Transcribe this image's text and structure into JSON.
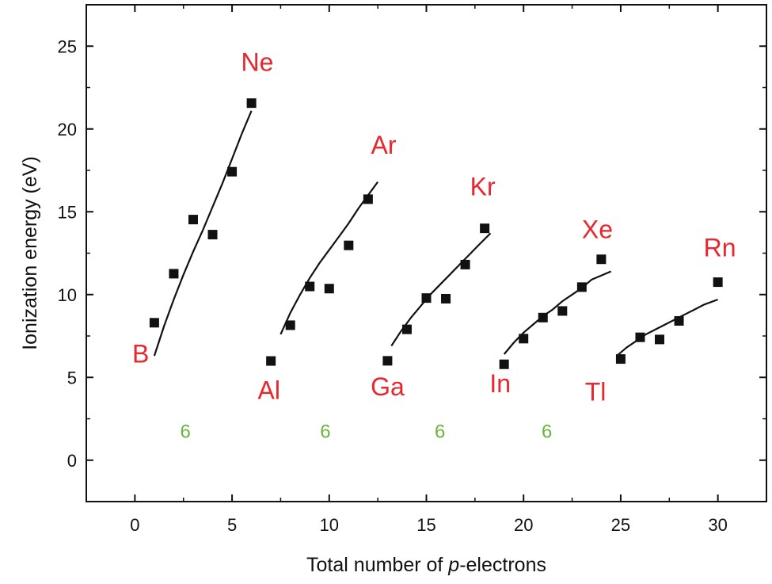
{
  "colors": {
    "element_label": "#e8262b",
    "count_label": "#6ab33d",
    "marker": "#111111",
    "fit_line": "#111111",
    "axis": "#111111"
  },
  "chart_data": {
    "type": "scatter",
    "xlabel_prefix": "Total number of ",
    "xlabel_italic": "p",
    "xlabel_suffix": "-electrons",
    "ylabel": "Ionization energy (eV)",
    "xlim": [
      -2.5,
      32.5
    ],
    "ylim": [
      -2.5,
      27.5
    ],
    "x_ticks": [
      0,
      5,
      10,
      15,
      20,
      25,
      30
    ],
    "y_ticks": [
      0,
      5,
      10,
      15,
      20,
      25
    ],
    "grid": false,
    "series": [
      {
        "points": [
          [
            1,
            8.3
          ],
          [
            2,
            11.26
          ],
          [
            3,
            14.53
          ],
          [
            4,
            13.62
          ],
          [
            5,
            17.42
          ],
          [
            6,
            21.56
          ]
        ],
        "fit": [
          [
            1,
            6.3
          ],
          [
            6,
            21.1
          ]
        ],
        "fit_shape": [
          [
            1.0,
            6.3
          ],
          [
            1.5,
            8.1
          ],
          [
            2.0,
            9.7
          ],
          [
            2.5,
            11.2
          ],
          [
            3.0,
            12.6
          ],
          [
            3.5,
            13.9
          ],
          [
            4.0,
            15.3
          ],
          [
            4.5,
            16.7
          ],
          [
            5.0,
            18.2
          ],
          [
            5.5,
            19.7
          ],
          [
            6.0,
            21.1
          ]
        ]
      },
      {
        "points": [
          [
            7,
            5.99
          ],
          [
            8,
            8.15
          ],
          [
            9,
            10.49
          ],
          [
            10,
            10.36
          ],
          [
            11,
            12.97
          ],
          [
            12,
            15.76
          ]
        ],
        "fit_shape": [
          [
            7.5,
            7.6
          ],
          [
            8.0,
            8.9
          ],
          [
            8.5,
            10.0
          ],
          [
            9.0,
            11.0
          ],
          [
            9.5,
            11.9
          ],
          [
            10.0,
            12.7
          ],
          [
            10.5,
            13.5
          ],
          [
            11.0,
            14.3
          ],
          [
            11.5,
            15.2
          ],
          [
            12.0,
            16.0
          ],
          [
            12.5,
            16.8
          ]
        ]
      },
      {
        "points": [
          [
            13,
            6.0
          ],
          [
            14,
            7.9
          ],
          [
            15,
            9.79
          ],
          [
            16,
            9.75
          ],
          [
            17,
            11.81
          ],
          [
            18,
            14.0
          ]
        ],
        "fit_shape": [
          [
            13.2,
            6.9
          ],
          [
            13.7,
            7.8
          ],
          [
            14.2,
            8.6
          ],
          [
            14.7,
            9.3
          ],
          [
            15.2,
            10.0
          ],
          [
            15.7,
            10.6
          ],
          [
            16.2,
            11.2
          ],
          [
            16.7,
            11.8
          ],
          [
            17.2,
            12.4
          ],
          [
            17.7,
            13.0
          ],
          [
            18.3,
            13.7
          ]
        ]
      },
      {
        "points": [
          [
            19,
            5.79
          ],
          [
            20,
            7.34
          ],
          [
            21,
            8.61
          ],
          [
            22,
            9.01
          ],
          [
            23,
            10.45
          ],
          [
            24,
            12.13
          ]
        ],
        "fit_shape": [
          [
            19.0,
            6.4
          ],
          [
            19.5,
            7.1
          ],
          [
            20.0,
            7.7
          ],
          [
            20.5,
            8.2
          ],
          [
            21.0,
            8.7
          ],
          [
            21.5,
            9.1
          ],
          [
            22.0,
            9.6
          ],
          [
            22.5,
            10.0
          ],
          [
            23.0,
            10.4
          ],
          [
            23.5,
            10.9
          ],
          [
            24.5,
            11.4
          ]
        ]
      },
      {
        "points": [
          [
            25,
            6.11
          ],
          [
            26,
            7.42
          ],
          [
            27,
            7.29
          ],
          [
            28,
            8.41
          ],
          [
            30,
            10.75
          ]
        ],
        "fit_shape": [
          [
            24.8,
            6.3
          ],
          [
            25.3,
            6.8
          ],
          [
            25.8,
            7.2
          ],
          [
            26.3,
            7.6
          ],
          [
            26.8,
            7.9
          ],
          [
            27.3,
            8.2
          ],
          [
            27.8,
            8.5
          ],
          [
            28.3,
            8.8
          ],
          [
            28.8,
            9.1
          ],
          [
            29.3,
            9.4
          ],
          [
            30.0,
            9.7
          ]
        ]
      }
    ],
    "annotations": [
      {
        "text": "B",
        "kind": "element",
        "at": [
          0.3,
          5.9
        ]
      },
      {
        "text": "Ne",
        "kind": "element",
        "at": [
          6.3,
          23.5
        ]
      },
      {
        "text": "Al",
        "kind": "element",
        "at": [
          6.9,
          3.7
        ]
      },
      {
        "text": "Ar",
        "kind": "element",
        "at": [
          12.8,
          18.5
        ]
      },
      {
        "text": "Ga",
        "kind": "element",
        "at": [
          13.0,
          3.9
        ]
      },
      {
        "text": "Kr",
        "kind": "element",
        "at": [
          17.9,
          16.0
        ]
      },
      {
        "text": "In",
        "kind": "element",
        "at": [
          18.8,
          4.1
        ]
      },
      {
        "text": "Xe",
        "kind": "element",
        "at": [
          23.8,
          13.4
        ]
      },
      {
        "text": "Tl",
        "kind": "element",
        "at": [
          23.7,
          3.6
        ]
      },
      {
        "text": "Rn",
        "kind": "element",
        "at": [
          30.1,
          12.3
        ]
      },
      {
        "text": "6",
        "kind": "count",
        "at": [
          2.6,
          1.35
        ]
      },
      {
        "text": "6",
        "kind": "count",
        "at": [
          9.8,
          1.35
        ]
      },
      {
        "text": "6",
        "kind": "count",
        "at": [
          15.7,
          1.35
        ]
      },
      {
        "text": "6",
        "kind": "count",
        "at": [
          21.2,
          1.35
        ]
      }
    ]
  }
}
